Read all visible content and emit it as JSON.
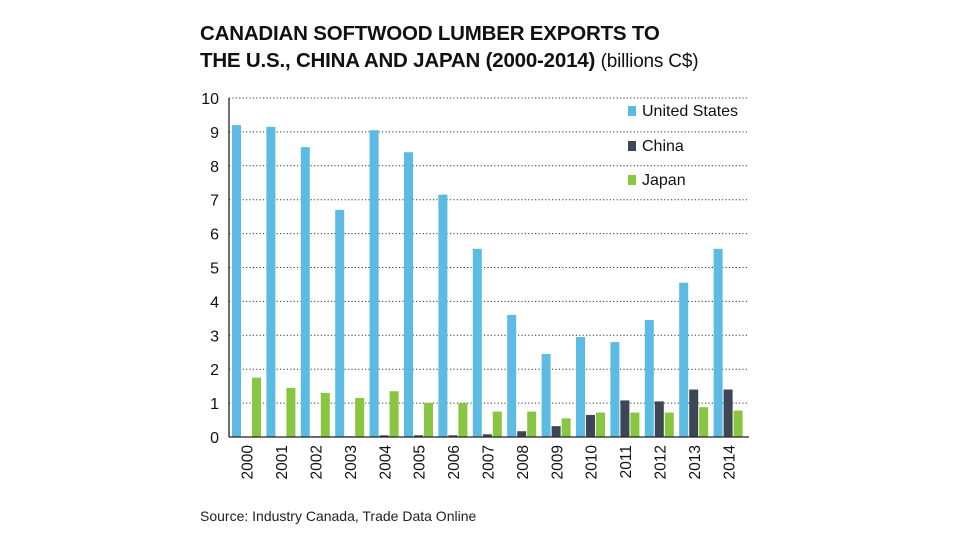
{
  "title": {
    "line1": "CANADIAN SOFTWOOD LUMBER EXPORTS TO",
    "line2": "THE U.S., CHINA AND JAPAN (2000-2014)",
    "unit": "(billions C$)"
  },
  "source": "Source: Industry Canada, Trade Data Online",
  "chart_data": {
    "type": "bar",
    "categories": [
      "2000",
      "2001",
      "2002",
      "2003",
      "2004",
      "2005",
      "2006",
      "2007",
      "2008",
      "2009",
      "2010",
      "2011",
      "2012",
      "2013",
      "2014"
    ],
    "series": [
      {
        "name": "United States",
        "color": "#5bbbe2",
        "values": [
          9.2,
          9.15,
          8.55,
          6.7,
          9.05,
          8.4,
          7.15,
          5.55,
          3.6,
          2.45,
          2.95,
          2.8,
          3.45,
          4.55,
          5.55
        ]
      },
      {
        "name": "China",
        "color": "#3c4654",
        "values": [
          0.0,
          0.0,
          0.02,
          0.02,
          0.05,
          0.05,
          0.05,
          0.08,
          0.17,
          0.32,
          0.65,
          1.08,
          1.05,
          1.4,
          1.4
        ]
      },
      {
        "name": "Japan",
        "color": "#88c540",
        "values": [
          1.75,
          1.45,
          1.3,
          1.15,
          1.35,
          1.0,
          1.0,
          0.75,
          0.75,
          0.55,
          0.72,
          0.72,
          0.72,
          0.88,
          0.78
        ]
      }
    ],
    "ylim": [
      0,
      10
    ],
    "yticks": [
      "0",
      "1",
      "2",
      "3",
      "4",
      "5",
      "6",
      "7",
      "8",
      "9",
      "10"
    ],
    "grid": "horizontal-dotted",
    "legend_position": "top-right"
  }
}
